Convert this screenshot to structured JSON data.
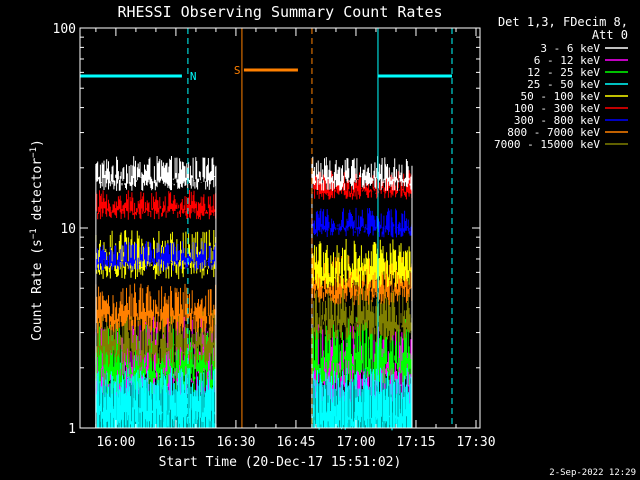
{
  "chart_data": {
    "type": "line",
    "title": "RHESSI Observing Summary Count Rates",
    "xlabel": "Start Time (20-Dec-17 15:51:02)",
    "ylabel": "Count Rate (s⁻¹ detector⁻¹)",
    "ylabel_parts": {
      "main": "Count Rate (s",
      "sup1": "−1",
      "mid": " detector",
      "sup2": "−1",
      "end": ")"
    },
    "y_scale": "log",
    "ylim": [
      1,
      100
    ],
    "y_ticks": [
      {
        "v": 1,
        "label": "1"
      },
      {
        "v": 10,
        "label": "10"
      },
      {
        "v": 100,
        "label": "100"
      }
    ],
    "xlim_minutes": [
      951.03,
      1051.0
    ],
    "x_ticks": [
      {
        "m": 960,
        "label": "16:00"
      },
      {
        "m": 975,
        "label": "16:15"
      },
      {
        "m": 990,
        "label": "16:30"
      },
      {
        "m": 1005,
        "label": "16:45"
      },
      {
        "m": 1020,
        "label": "17:00"
      },
      {
        "m": 1035,
        "label": "17:15"
      },
      {
        "m": 1050,
        "label": "17:30"
      }
    ],
    "legend_header": [
      "Det 1,3, FDecim 8,",
      "Att 0"
    ],
    "legend_placement": "right",
    "series": [
      {
        "name": "3 - 6 keV",
        "color": "#ffffff",
        "level1": 19.5,
        "level2": 19.5,
        "spread": 0.07
      },
      {
        "name": "6 - 12 keV",
        "color": "#ff00ff",
        "level1": 2.5,
        "level2": 2.3,
        "spread": 0.16
      },
      {
        "name": "12 - 25 keV",
        "color": "#00ff00",
        "level1": 2.4,
        "level2": 2.6,
        "spread": 0.14
      },
      {
        "name": "25 - 50 keV",
        "color": "#00ffff",
        "level1": 1.5,
        "level2": 1.4,
        "spread": 0.16
      },
      {
        "name": "50 - 100 keV",
        "color": "#ffff00",
        "level1": 7.8,
        "level2": 7.0,
        "spread": 0.1
      },
      {
        "name": "100 - 300 keV",
        "color": "#ff0000",
        "level1": 13.5,
        "level2": 17.0,
        "spread": 0.06
      },
      {
        "name": "300 - 800 keV",
        "color": "#0000ff",
        "level1": 7.5,
        "level2": 11.0,
        "spread": 0.06
      },
      {
        "name": "800 - 7000 keV",
        "color": "#ff8000",
        "level1": 4.2,
        "level2": 5.8,
        "spread": 0.1
      },
      {
        "name": "7000 - 15000 keV",
        "color": "#808000",
        "level1": 3.0,
        "level2": 4.0,
        "spread": 0.12
      }
    ],
    "data_intervals_minutes": [
      [
        955.0,
        985.0
      ],
      [
        1009.0,
        1034.0
      ]
    ],
    "gap_fill_top": [
      1.0,
      1.0
    ],
    "saa_markers": [
      {
        "label": "S",
        "color": "#ff8000",
        "start": 991.5,
        "end": 1009.0,
        "bar_y": 82,
        "bar_start": 992.0,
        "bar_end": 1005.5
      }
    ],
    "night_markers": [
      {
        "label": "N",
        "color": "#00ffff",
        "start": 951.03,
        "end": 978.0,
        "bar_y": 76,
        "bar_end": 976.5
      },
      {
        "label": "",
        "color": "#00ffff",
        "start": 1025.5,
        "end": 1044.0,
        "bar_y": 76,
        "bar_start": 1025.5,
        "bar_end": 1044.0
      }
    ],
    "grid": false
  },
  "footer": {
    "date_stamp": "2-Sep-2022 12:29"
  }
}
